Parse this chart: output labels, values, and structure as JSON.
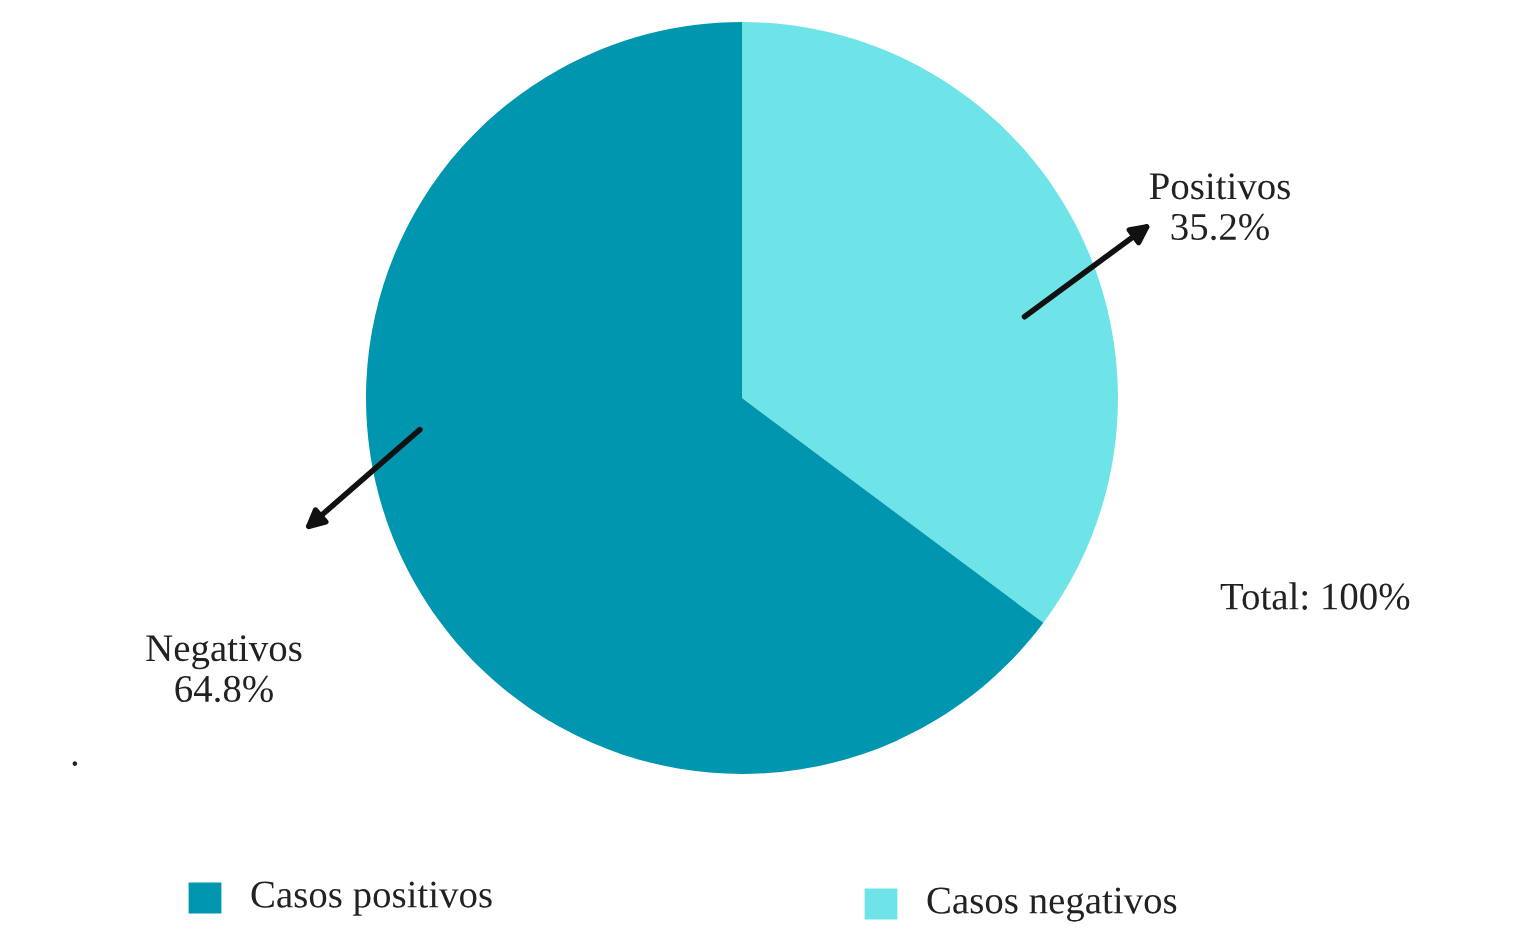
{
  "chart_data": {
    "type": "pie",
    "categories": [
      "Positivos",
      "Negativos"
    ],
    "values": [
      35.2,
      64.8
    ],
    "colors": [
      "#6ee3e8",
      "#0096b0"
    ],
    "value_labels": [
      "35.2%",
      "64.8%"
    ],
    "annotations": [
      "Total: 100%",
      ".",
      "Casos positivos",
      "Casos negativos"
    ]
  }
}
